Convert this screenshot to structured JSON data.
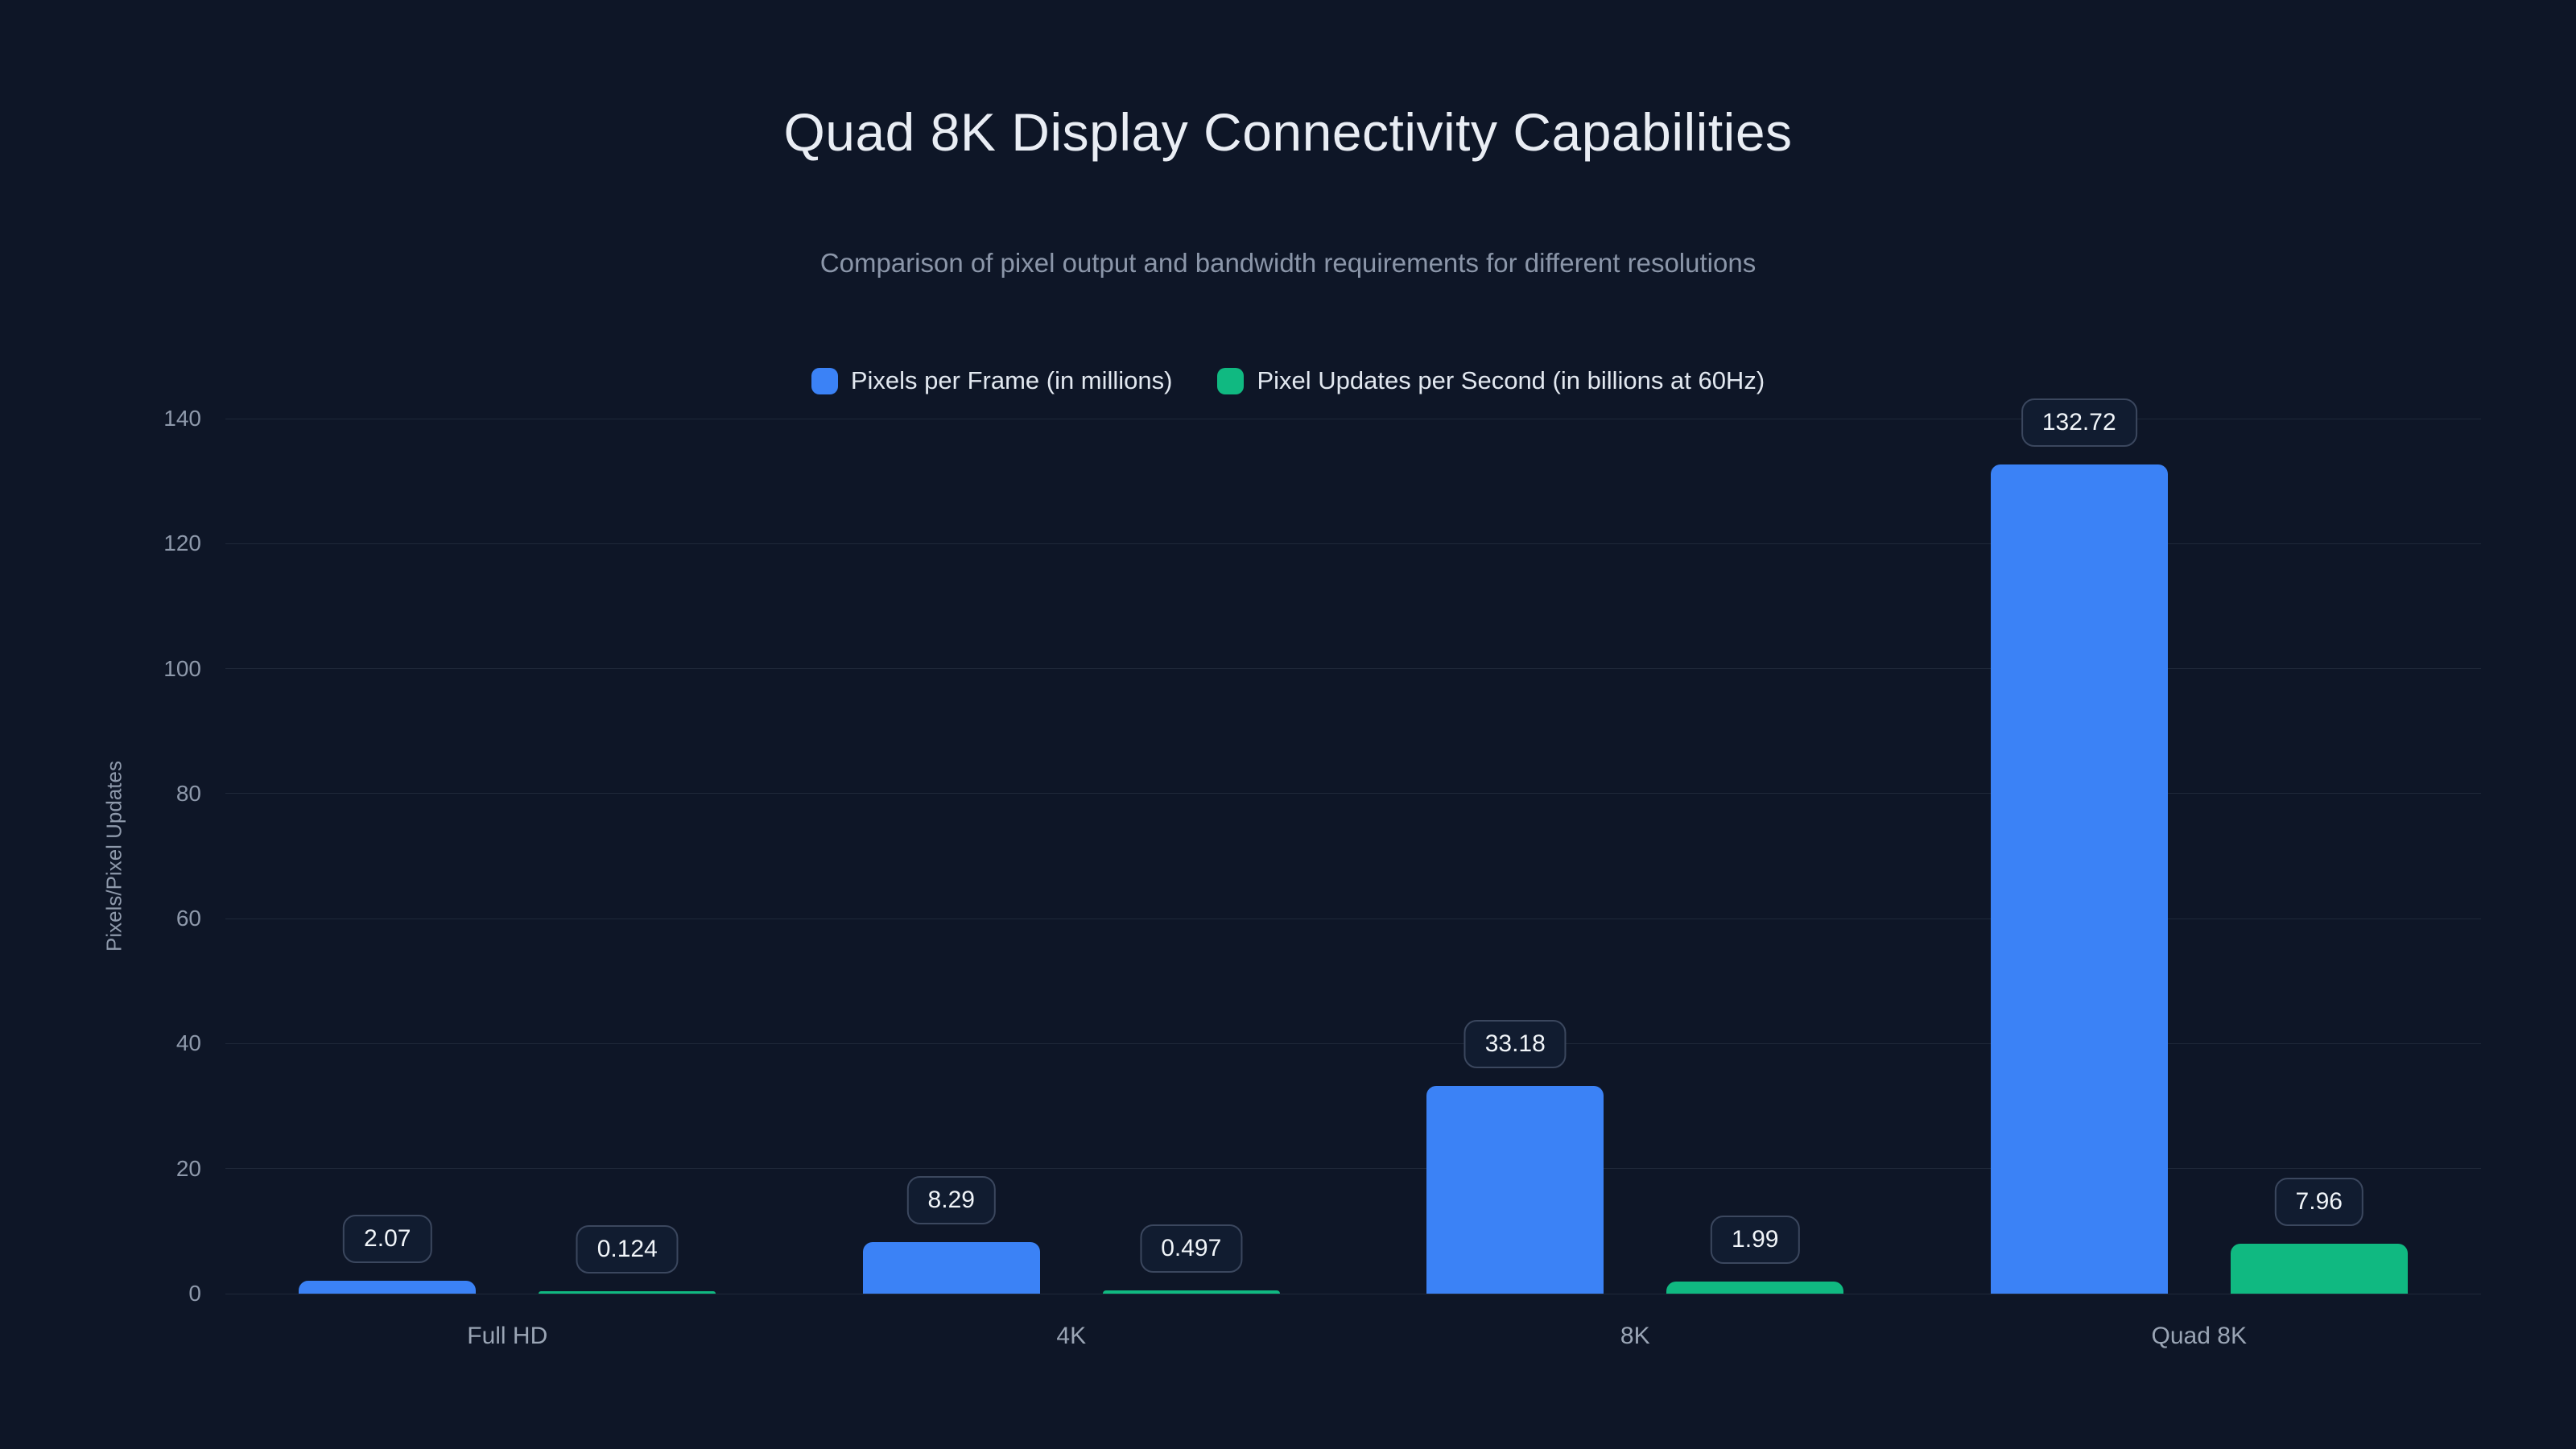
{
  "title": "Quad 8K Display Connectivity Capabilities",
  "subtitle": "Comparison of pixel output and bandwidth requirements for different resolutions",
  "colors": {
    "background": "#0e1627",
    "grid": "rgba(148,163,184,0.13)",
    "text_primary": "#e9edf4",
    "text_secondary": "#8b96a9",
    "badge_background": "#111c30",
    "badge_border": "#3b475e",
    "series_blue": "#3b82f6",
    "series_green": "#10b981"
  },
  "chart_data": {
    "type": "bar",
    "categories": [
      "Full HD",
      "4K",
      "8K",
      "Quad 8K"
    ],
    "series": [
      {
        "name": "Pixels per Frame (in millions)",
        "color": "#3b82f6",
        "values": [
          2.07,
          8.29,
          33.18,
          132.72
        ],
        "value_labels": [
          "2.07",
          "8.29",
          "33.18",
          "132.72"
        ]
      },
      {
        "name": "Pixel Updates per Second (in billions at 60Hz)",
        "color": "#10b981",
        "values": [
          0.124,
          0.497,
          1.99,
          7.96
        ],
        "value_labels": [
          "0.124",
          "0.497",
          "1.99",
          "7.96"
        ]
      }
    ],
    "title": "Quad 8K Display Connectivity Capabilities",
    "xlabel": "",
    "ylabel": "Pixels/Pixel Updates",
    "ylim": [
      0,
      140
    ],
    "yticks": [
      0,
      20,
      40,
      60,
      80,
      100,
      120,
      140
    ],
    "grid": true,
    "legend_position": "top"
  }
}
